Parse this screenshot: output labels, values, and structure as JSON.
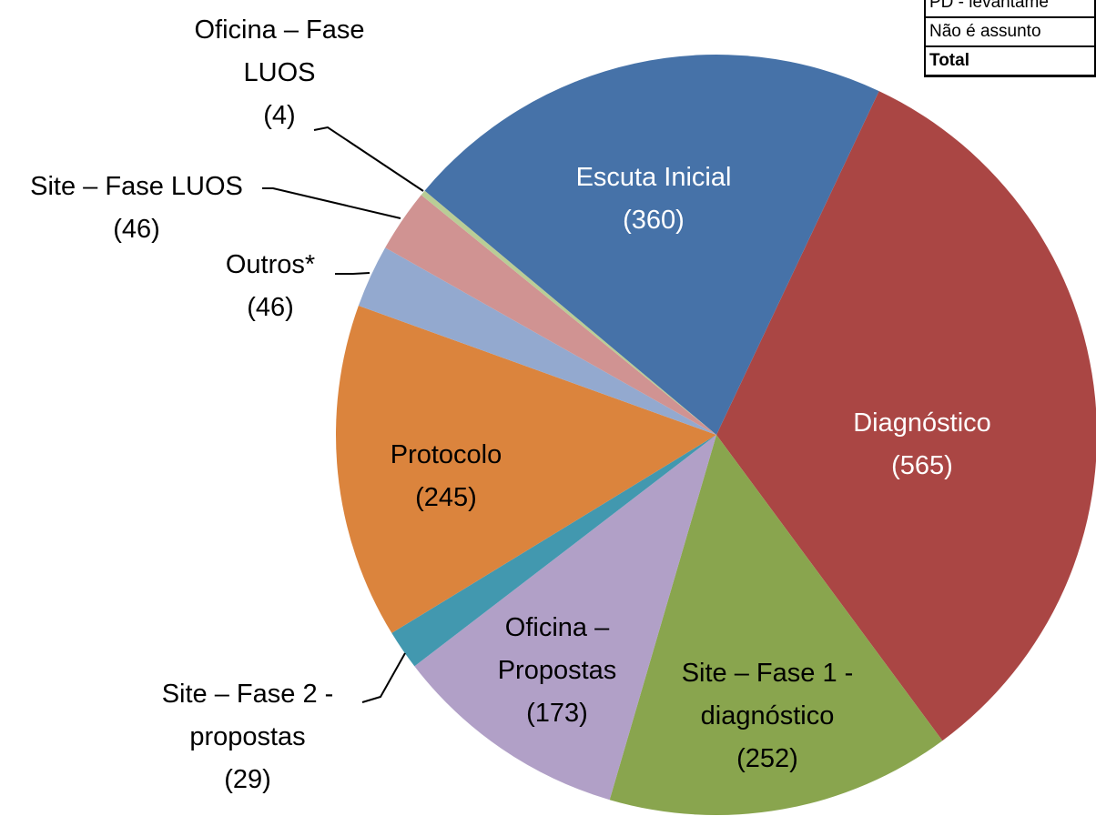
{
  "chart_data": {
    "type": "pie",
    "categories": [
      "Diagnóstico",
      "Site – Fase 1 - diagnóstico",
      "Oficina – Propostas",
      "Site – Fase 2 - propostas",
      "Protocolo",
      "Outros*",
      "Site – Fase LUOS",
      "Oficina – Fase LUOS",
      "Escuta Inicial"
    ],
    "values": [
      565,
      252,
      173,
      29,
      245,
      46,
      46,
      4,
      360
    ],
    "value_labels": [
      "(565)",
      "(252)",
      "(173)",
      "(29)",
      "(245)",
      "(46)",
      "(46)",
      "(4)",
      "(360)"
    ],
    "colors": [
      "#aa4644",
      "#89a54e",
      "#b1a0c7",
      "#4298af",
      "#db843d",
      "#93a9cf",
      "#d09392",
      "#b9cd96",
      "#4672a8"
    ]
  },
  "table": {
    "rows": [
      [
        "PD - levantame"
      ],
      [
        "Não é assunto"
      ],
      [
        "Total"
      ]
    ]
  }
}
